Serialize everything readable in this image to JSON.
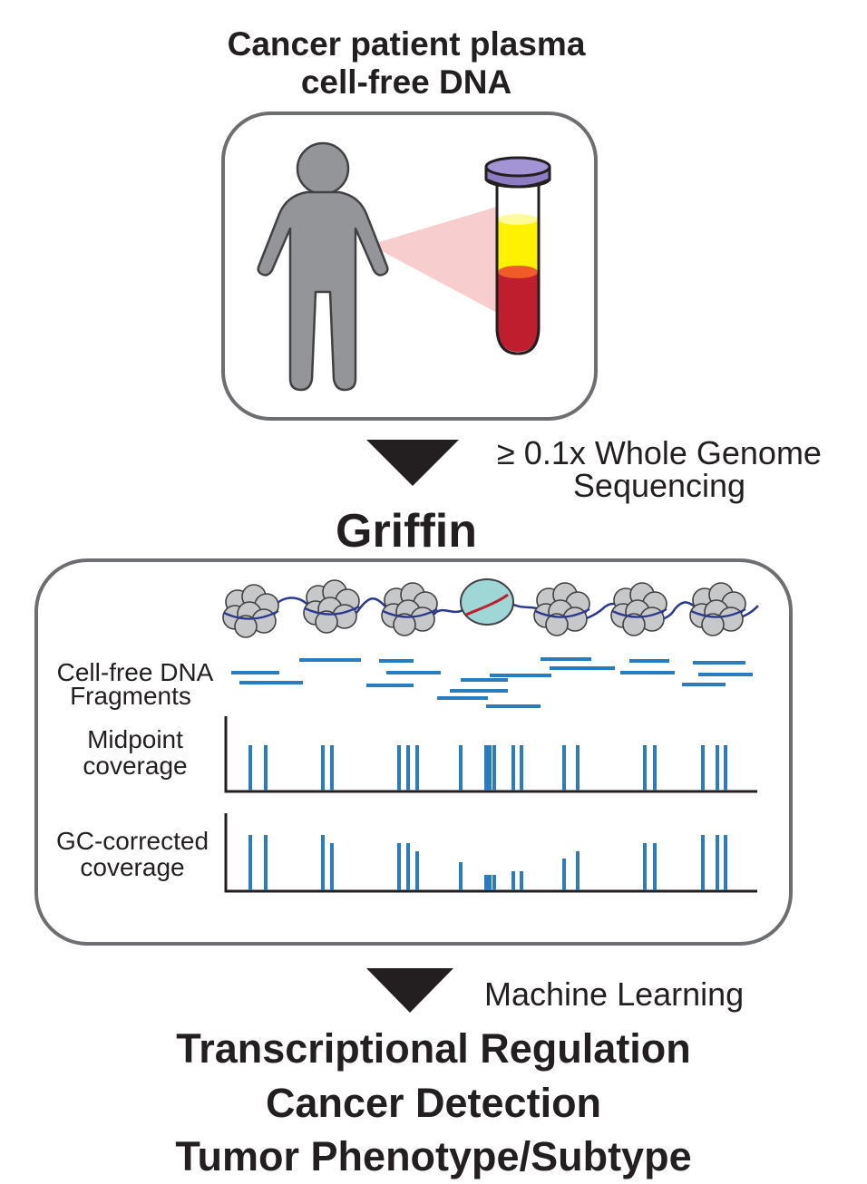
{
  "header": {
    "line1": "Cancer patient plasma",
    "line2": "cell-free DNA"
  },
  "sequencing": {
    "line1": "≥ 0.1x Whole Genome",
    "line2": "Sequencing"
  },
  "method": {
    "name": "Griffin"
  },
  "tracks": {
    "fragments_line1": "Cell-free DNA",
    "fragments_line2": "Fragments",
    "midpoint_line1": "Midpoint",
    "midpoint_line2": "coverage",
    "gc_line1": "GC-corrected",
    "gc_line2": "coverage"
  },
  "analysis": {
    "label": "Machine Learning"
  },
  "outcomes": [
    "Transcriptional Regulation",
    "Cancer Detection",
    "Tumor Phenotype/Subtype"
  ],
  "colors": {
    "person": "#939598",
    "tube_cap": "#8e7cc3",
    "plasma": "#fff200",
    "blood": "#be1e2d",
    "fragment_blue": "#2b7bbf",
    "nucleosome_gray": "#c7c8ca",
    "open_site": "#9fd6d6"
  }
}
